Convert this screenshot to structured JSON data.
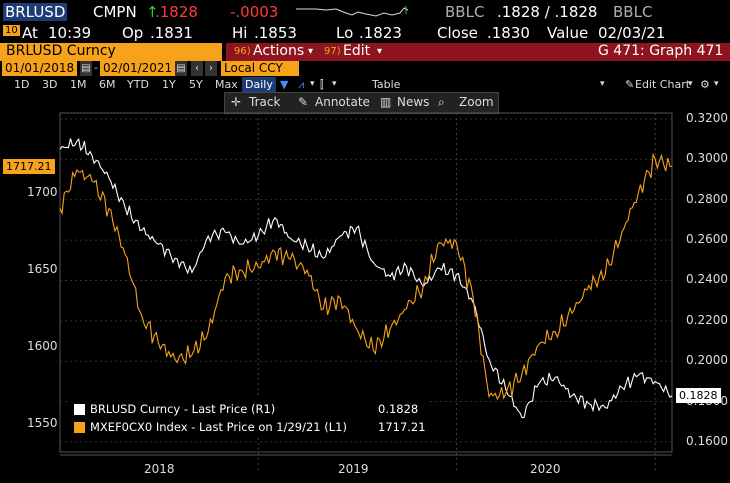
{
  "header": {
    "ticker": "BRLUSD",
    "source": "CMPN",
    "arrow": "↑",
    "last": ".1828",
    "change": "-.0003",
    "pricing": "BBLC",
    "bid_ask": ".1828 / .1828",
    "pricing2": "BBLC",
    "badge": "10",
    "at_label": "At",
    "time": "10:39",
    "op_label": "Op",
    "open": ".1831",
    "hi_label": "Hi",
    "high": ".1853",
    "lo_label": "Lo",
    "low": ".1823",
    "close_label": "Close",
    "close": ".1830",
    "value_label": "Value",
    "value_date": "02/03/21"
  },
  "menu": {
    "security": "BRLUSD Curncy",
    "actions_num": "96)",
    "actions": "Actions",
    "edit_num": "97)",
    "edit": "Edit",
    "graph": "G 471: Graph 471"
  },
  "range": {
    "start": "01/01/2018",
    "end": "02/01/2021",
    "currency": "Local CCY",
    "periods": [
      "1D",
      "3D",
      "1M",
      "6M",
      "YTD",
      "1Y",
      "5Y",
      "Max"
    ],
    "frequency": "Daily",
    "table": "Table",
    "edit_chart": "Edit Chart"
  },
  "tools": {
    "track": "Track",
    "annotate": "Annotate",
    "news": "News",
    "zoom": "Zoom"
  },
  "colors": {
    "orange": "#f7a21b",
    "white_series": "#ffffff",
    "redbar": "#8e1420",
    "change_red": "#ff3b3b",
    "arrow_green": "#2bd42b"
  },
  "chart_data": {
    "type": "line",
    "x_axis_labels": [
      "2018",
      "2019",
      "2020"
    ],
    "x_range": [
      "2018-01-01",
      "2021-02-01"
    ],
    "left_axis": {
      "ticks": [
        "1700",
        "1650",
        "1600",
        "1550"
      ],
      "ylim": [
        1532,
        1752
      ]
    },
    "right_axis": {
      "ticks": [
        "0.3200",
        "0.3000",
        "0.2800",
        "0.2600",
        "0.2400",
        "0.2200",
        "0.2000",
        "0.1800",
        "0.1600"
      ],
      "ylim": [
        0.155,
        0.323
      ]
    },
    "series": [
      {
        "name": "BRLUSD Curncy - Last Price (R1)",
        "axis": "right",
        "color": "#ffffff",
        "last_value": "0.1828",
        "points": [
          [
            "2018-01-01",
            0.305
          ],
          [
            "2018-02-01",
            0.309
          ],
          [
            "2018-03-01",
            0.302
          ],
          [
            "2018-04-01",
            0.291
          ],
          [
            "2018-05-01",
            0.276
          ],
          [
            "2018-06-01",
            0.265
          ],
          [
            "2018-07-01",
            0.258
          ],
          [
            "2018-08-01",
            0.251
          ],
          [
            "2018-09-01",
            0.244
          ],
          [
            "2018-10-01",
            0.262
          ],
          [
            "2018-11-01",
            0.264
          ],
          [
            "2018-12-01",
            0.258
          ],
          [
            "2019-01-01",
            0.262
          ],
          [
            "2019-02-01",
            0.271
          ],
          [
            "2019-03-01",
            0.261
          ],
          [
            "2019-04-01",
            0.257
          ],
          [
            "2019-05-01",
            0.251
          ],
          [
            "2019-06-01",
            0.262
          ],
          [
            "2019-07-01",
            0.266
          ],
          [
            "2019-08-01",
            0.249
          ],
          [
            "2019-09-01",
            0.242
          ],
          [
            "2019-10-01",
            0.247
          ],
          [
            "2019-11-01",
            0.237
          ],
          [
            "2019-12-01",
            0.246
          ],
          [
            "2020-01-01",
            0.243
          ],
          [
            "2020-02-01",
            0.229
          ],
          [
            "2020-03-01",
            0.201
          ],
          [
            "2020-04-01",
            0.186
          ],
          [
            "2020-05-01",
            0.172
          ],
          [
            "2020-06-01",
            0.189
          ],
          [
            "2020-07-01",
            0.192
          ],
          [
            "2020-08-01",
            0.183
          ],
          [
            "2020-09-01",
            0.179
          ],
          [
            "2020-10-01",
            0.177
          ],
          [
            "2020-11-01",
            0.187
          ],
          [
            "2020-12-01",
            0.193
          ],
          [
            "2021-01-01",
            0.19
          ],
          [
            "2021-02-01",
            0.1828
          ]
        ]
      },
      {
        "name": "MXEF0CX0 Index - Last Price on 1/29/21 (L1)",
        "axis": "left",
        "color": "#f7a21b",
        "last_value": "1717.21",
        "points": [
          [
            "2018-01-01",
            1690
          ],
          [
            "2018-02-01",
            1715
          ],
          [
            "2018-03-01",
            1708
          ],
          [
            "2018-04-01",
            1690
          ],
          [
            "2018-05-01",
            1660
          ],
          [
            "2018-06-01",
            1620
          ],
          [
            "2018-07-01",
            1603
          ],
          [
            "2018-08-01",
            1592
          ],
          [
            "2018-09-01",
            1595
          ],
          [
            "2018-10-01",
            1610
          ],
          [
            "2018-11-01",
            1645
          ],
          [
            "2018-12-01",
            1650
          ],
          [
            "2019-01-01",
            1652
          ],
          [
            "2019-02-01",
            1662
          ],
          [
            "2019-03-01",
            1657
          ],
          [
            "2019-04-01",
            1650
          ],
          [
            "2019-05-01",
            1625
          ],
          [
            "2019-06-01",
            1632
          ],
          [
            "2019-07-01",
            1612
          ],
          [
            "2019-08-01",
            1598
          ],
          [
            "2019-09-01",
            1612
          ],
          [
            "2019-10-01",
            1625
          ],
          [
            "2019-11-01",
            1640
          ],
          [
            "2019-12-01",
            1668
          ],
          [
            "2020-01-01",
            1668
          ],
          [
            "2020-02-01",
            1632
          ],
          [
            "2020-03-01",
            1568
          ],
          [
            "2020-04-01",
            1570
          ],
          [
            "2020-05-01",
            1583
          ],
          [
            "2020-06-01",
            1602
          ],
          [
            "2020-07-01",
            1610
          ],
          [
            "2020-08-01",
            1622
          ],
          [
            "2020-09-01",
            1640
          ],
          [
            "2020-10-01",
            1647
          ],
          [
            "2020-11-01",
            1675
          ],
          [
            "2020-12-01",
            1700
          ],
          [
            "2021-01-01",
            1722
          ],
          [
            "2021-02-01",
            1717.21
          ]
        ]
      }
    ]
  }
}
